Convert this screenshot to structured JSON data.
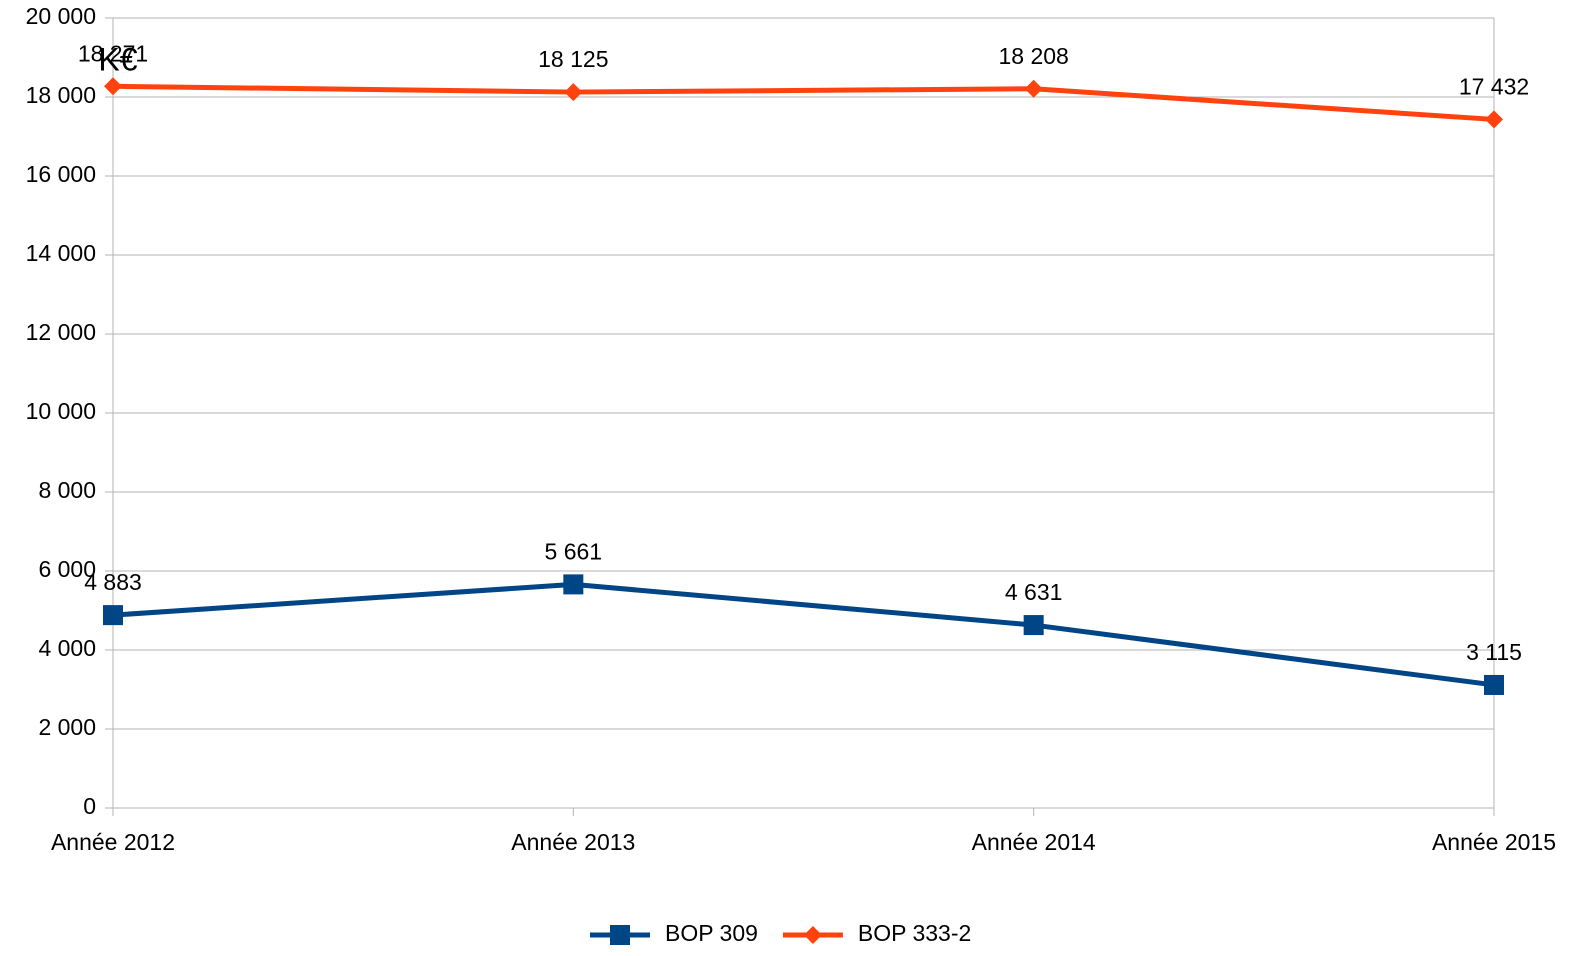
{
  "chart_data": {
    "type": "line",
    "annotation": "K€",
    "categories": [
      "Année 2012",
      "Année 2013",
      "Année 2014",
      "Année 2015"
    ],
    "series": [
      {
        "name": "BOP 309",
        "color": "#004586",
        "marker": "square",
        "values": [
          4883,
          5661,
          4631,
          3115
        ],
        "value_labels": [
          "4 883",
          "5 661",
          "4 631",
          "3 115"
        ]
      },
      {
        "name": "BOP 333-2",
        "color": "#ff420e",
        "marker": "diamond",
        "values": [
          18271,
          18125,
          18208,
          17432
        ],
        "value_labels": [
          "18 271",
          "18 125",
          "18 208",
          "17 432"
        ]
      }
    ],
    "ylim": [
      0,
      20000
    ],
    "yticks": [
      0,
      {
        "value": 2000,
        "label": "2 000"
      },
      {
        "value": 4000,
        "label": "4 000"
      },
      {
        "value": 6000,
        "label": "6 000"
      },
      {
        "value": 8000,
        "label": "8 000"
      },
      {
        "value": 10000,
        "label": "10 000"
      },
      {
        "value": 12000,
        "label": "12 000"
      },
      {
        "value": 14000,
        "label": "14 000"
      },
      {
        "value": 16000,
        "label": "16 000"
      },
      {
        "value": 18000,
        "label": "18 000"
      },
      {
        "value": 20000,
        "label": "20 000"
      }
    ],
    "grid": true,
    "legend": "bottom"
  }
}
